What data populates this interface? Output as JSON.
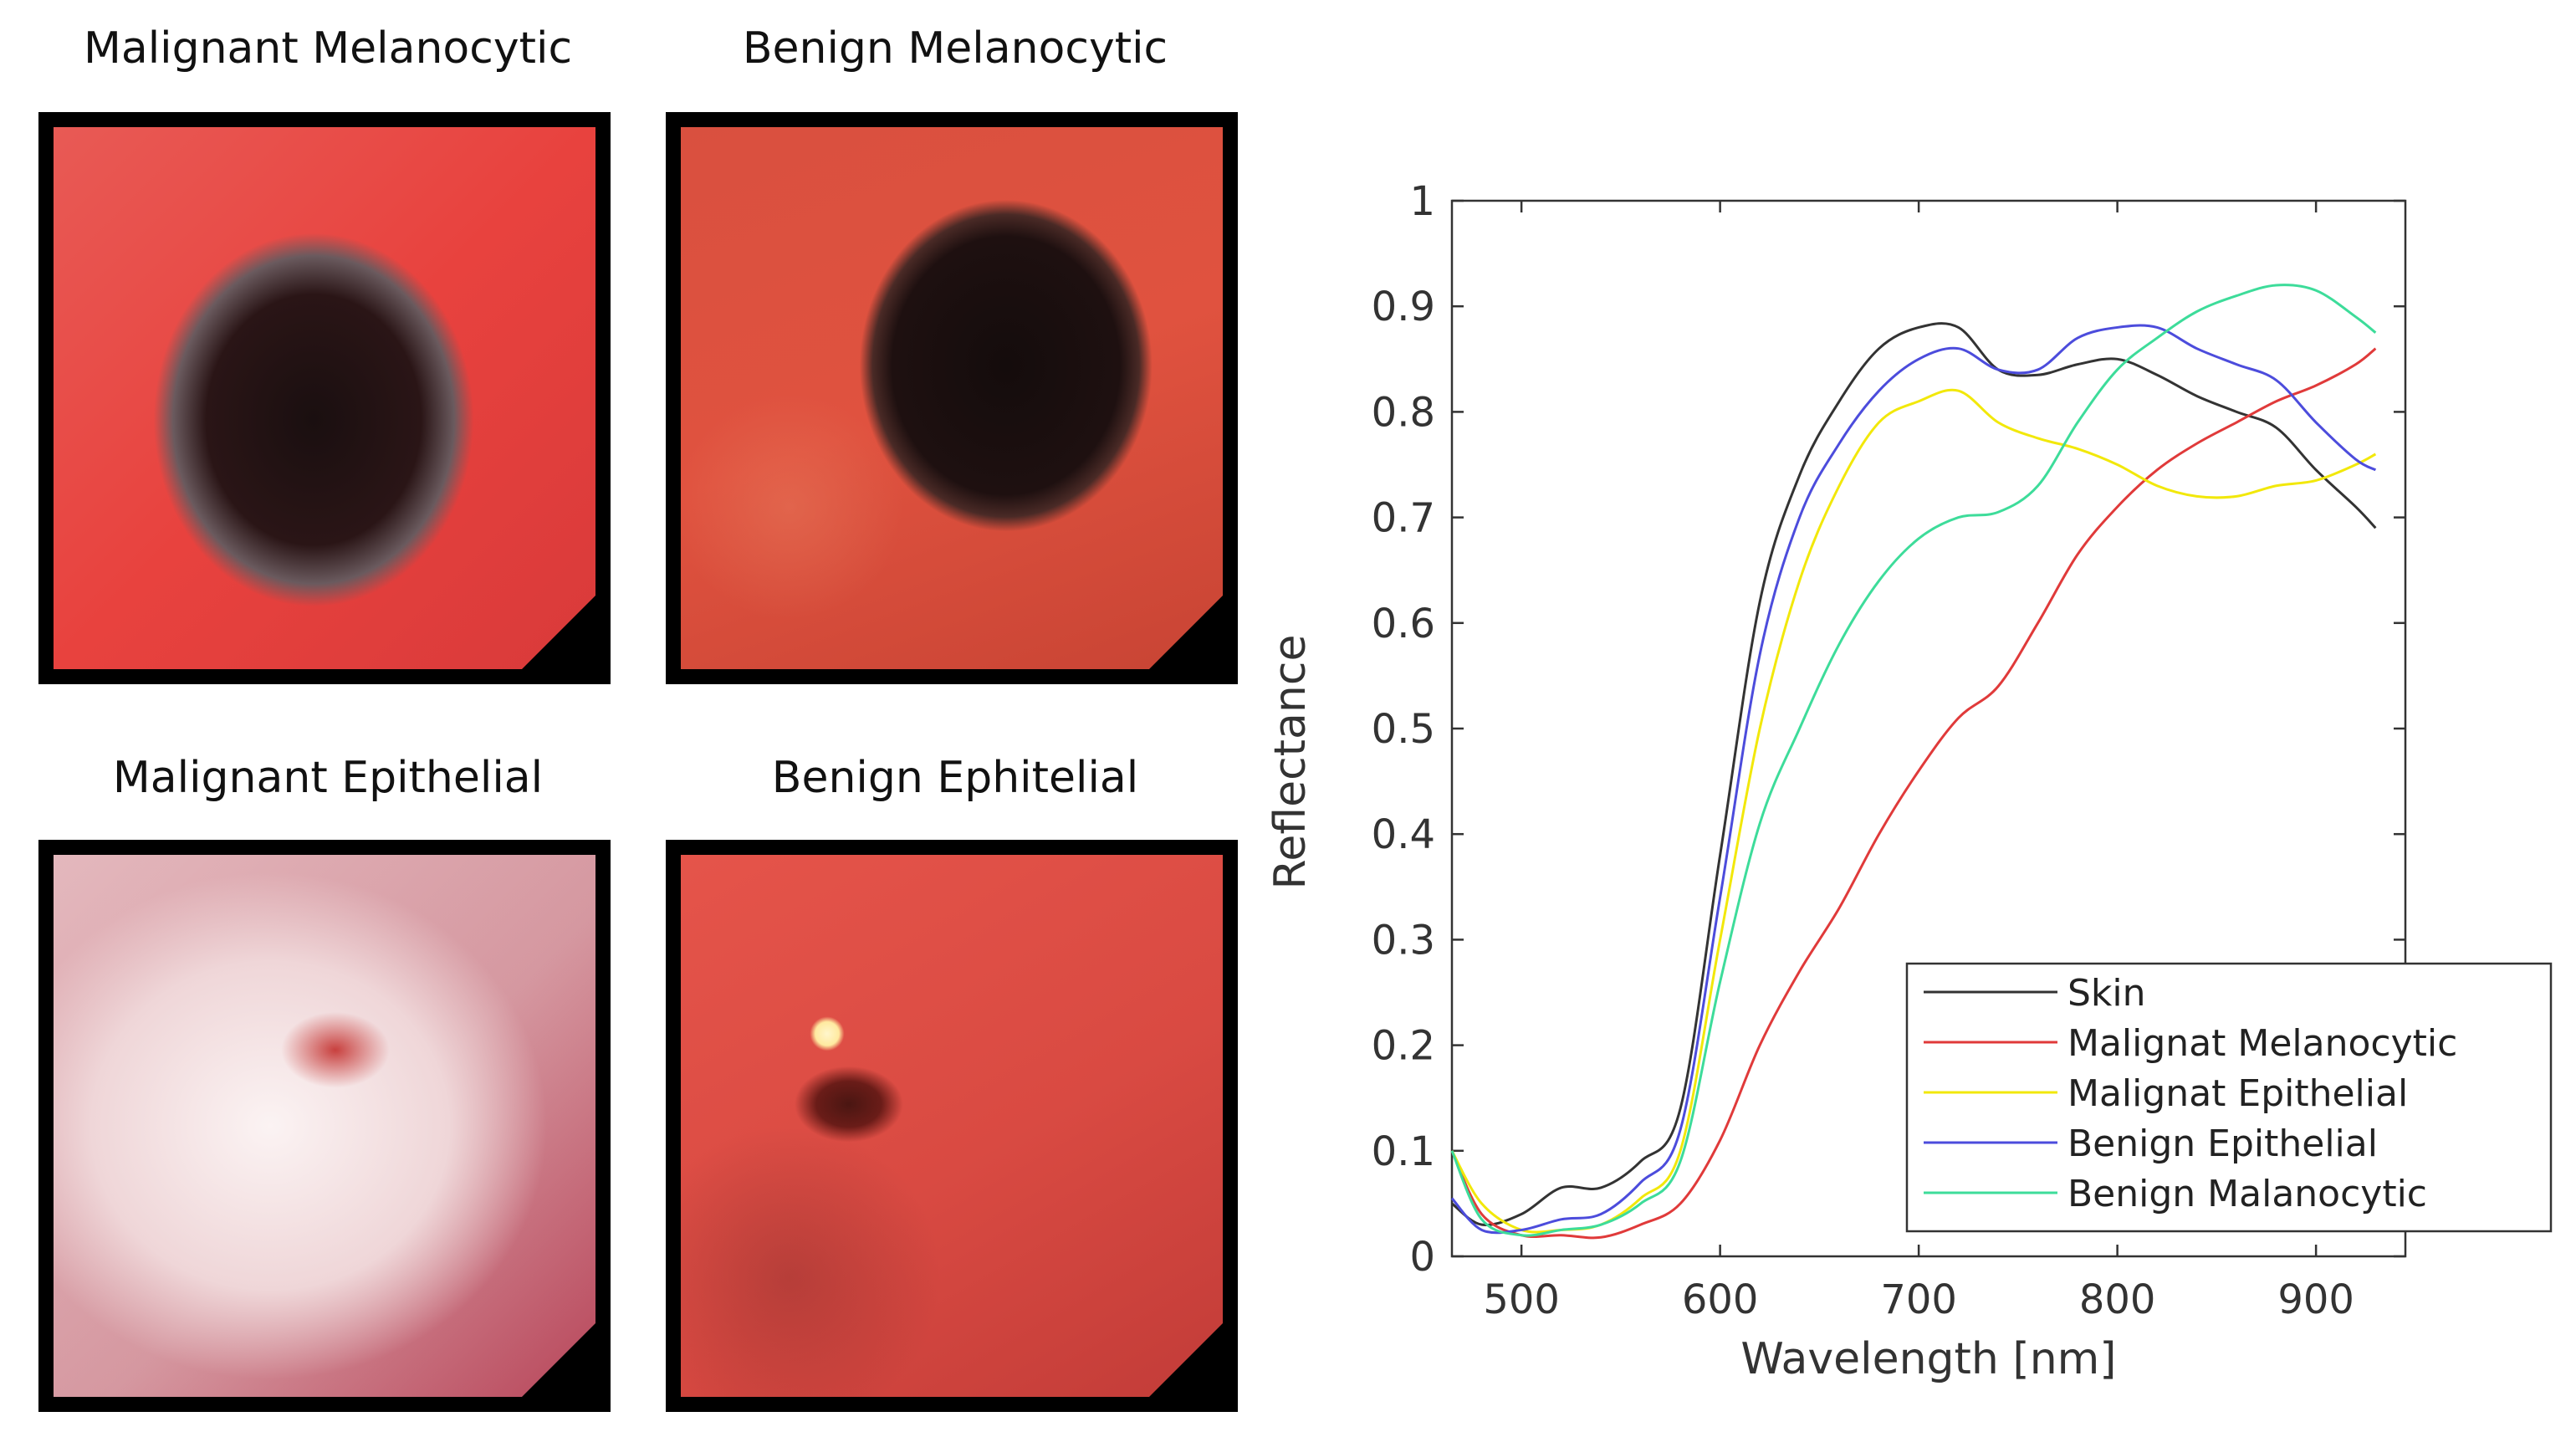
{
  "panels": [
    {
      "title": "Malignant Melanocytic"
    },
    {
      "title": "Benign Melanocytic"
    },
    {
      "title": "Malignant Epithelial"
    },
    {
      "title": "Benign Ephitelial"
    }
  ],
  "chart_data": {
    "type": "line",
    "title": "",
    "xlabel": "Wavelength [nm]",
    "ylabel": "Reflectance",
    "xlim": [
      465,
      945
    ],
    "ylim": [
      0,
      1
    ],
    "xticks": [
      500,
      600,
      700,
      800,
      900
    ],
    "yticks": [
      0,
      0.1,
      0.2,
      0.3,
      0.4,
      0.5,
      0.6,
      0.7,
      0.8,
      0.9,
      1
    ],
    "ytick_labels": [
      "0",
      "0.1",
      "0.2",
      "0.3",
      "0.4",
      "0.5",
      "0.6",
      "0.7",
      "0.8",
      "0.9",
      "1"
    ],
    "grid": false,
    "legend_position": "bottom-right",
    "x": [
      465,
      480,
      500,
      520,
      540,
      560,
      580,
      600,
      620,
      640,
      660,
      680,
      700,
      720,
      740,
      760,
      780,
      800,
      820,
      840,
      860,
      880,
      900,
      920,
      930
    ],
    "series": [
      {
        "name": "Skin",
        "color": "#333333",
        "values": [
          0.05,
          0.03,
          0.04,
          0.065,
          0.065,
          0.09,
          0.14,
          0.38,
          0.62,
          0.74,
          0.81,
          0.86,
          0.88,
          0.88,
          0.84,
          0.835,
          0.845,
          0.85,
          0.835,
          0.815,
          0.8,
          0.785,
          0.745,
          0.71,
          0.69
        ]
      },
      {
        "name": "Malignat Melanocytic",
        "color": "#e03a3a",
        "values": [
          0.1,
          0.04,
          0.02,
          0.02,
          0.018,
          0.03,
          0.05,
          0.11,
          0.2,
          0.27,
          0.33,
          0.4,
          0.46,
          0.51,
          0.54,
          0.6,
          0.665,
          0.71,
          0.745,
          0.77,
          0.79,
          0.81,
          0.825,
          0.845,
          0.86
        ]
      },
      {
        "name": "Malignat Epithelial",
        "color": "#f2e80a",
        "values": [
          0.1,
          0.05,
          0.025,
          0.025,
          0.03,
          0.055,
          0.1,
          0.3,
          0.5,
          0.64,
          0.73,
          0.79,
          0.81,
          0.82,
          0.79,
          0.775,
          0.765,
          0.75,
          0.73,
          0.72,
          0.72,
          0.73,
          0.735,
          0.75,
          0.76
        ]
      },
      {
        "name": "Benign Epithelial",
        "color": "#4c4cdc",
        "values": [
          0.055,
          0.025,
          0.025,
          0.035,
          0.04,
          0.07,
          0.12,
          0.34,
          0.57,
          0.7,
          0.77,
          0.82,
          0.85,
          0.86,
          0.84,
          0.84,
          0.87,
          0.88,
          0.88,
          0.86,
          0.845,
          0.83,
          0.79,
          0.755,
          0.745
        ]
      },
      {
        "name": "Benign Malanocytic",
        "color": "#3ddc9a",
        "values": [
          0.1,
          0.035,
          0.02,
          0.025,
          0.03,
          0.05,
          0.09,
          0.26,
          0.41,
          0.5,
          0.58,
          0.64,
          0.68,
          0.7,
          0.705,
          0.73,
          0.79,
          0.84,
          0.87,
          0.895,
          0.91,
          0.92,
          0.915,
          0.89,
          0.875
        ]
      }
    ]
  }
}
